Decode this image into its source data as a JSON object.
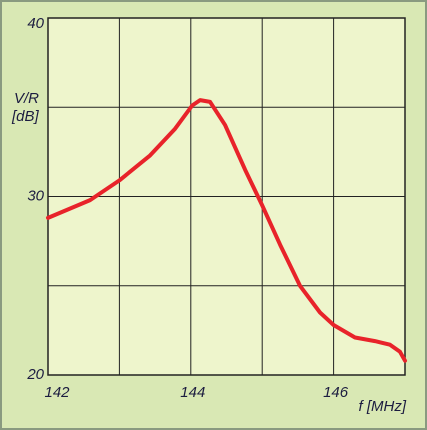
{
  "chart_data": {
    "type": "line",
    "ylabel": [
      "V/R",
      "[dB]"
    ],
    "xlabel": "f [MHz]",
    "x": [
      142,
      142.59,
      143,
      143.43,
      143.78,
      144.02,
      144.13,
      144.27,
      144.48,
      144.76,
      145,
      145.25,
      145.53,
      145.81,
      146,
      146.3,
      146.58,
      146.79,
      146.93,
      147
    ],
    "series": [
      {
        "color": "#e8232a",
        "values": [
          28.8,
          29.8,
          30.9,
          32.3,
          33.8,
          35.1,
          35.4,
          35.3,
          34.0,
          31.5,
          29.5,
          27.3,
          25.0,
          23.5,
          22.8,
          22.1,
          21.9,
          21.7,
          21.3,
          20.8
        ]
      }
    ],
    "xlim": [
      142,
      147
    ],
    "ylim": [
      20,
      40
    ],
    "xticks": [
      142,
      {
        "value": 143,
        "label": null
      },
      144,
      {
        "value": 145,
        "label": null
      },
      146,
      {
        "value": 147,
        "label": null
      }
    ],
    "yticks": [
      20,
      {
        "value": 25,
        "label": null
      },
      30,
      {
        "value": 35,
        "label": null
      },
      40
    ],
    "grid": true
  }
}
